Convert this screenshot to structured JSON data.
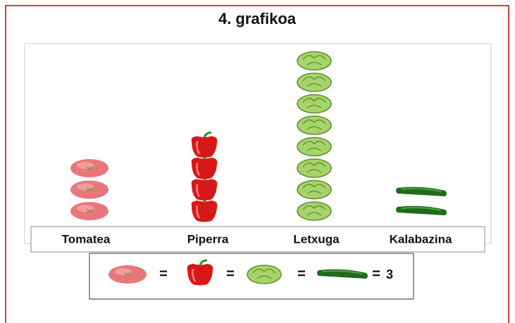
{
  "chart_data": {
    "type": "pictograph",
    "title": "4. grafikoa",
    "categories": [
      "Tomatea",
      "Piperra",
      "Letxuga",
      "Kalabazina"
    ],
    "values": [
      9,
      12,
      24,
      6
    ],
    "unit": 3
  }
}
